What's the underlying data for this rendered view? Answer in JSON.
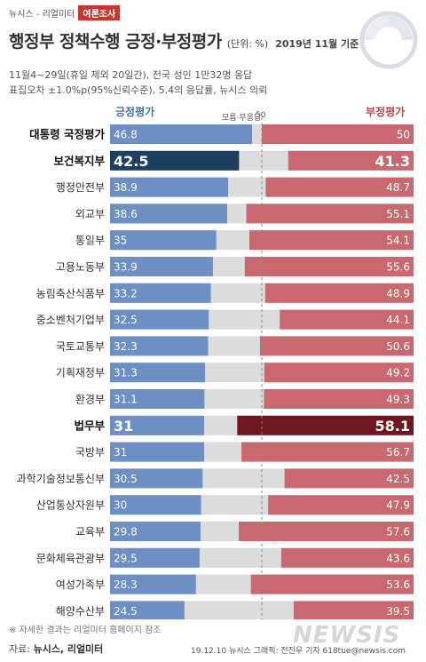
{
  "header": {
    "brand": "뉴시스 - 리얼미터",
    "tag": "여론조사"
  },
  "title": {
    "main": "행정부 정책수행 긍정·부정평가",
    "unit": "(단위: %)",
    "basis": "2019년 11월 기준"
  },
  "notes": {
    "line1": "11월4~29일(휴일 제외 20일간), 전국 성인 1만32명 응답",
    "line2": "표집오차 ±1.0%p(95%신뢰수준), 5.4의 응답률, 뉴시스 의뢰"
  },
  "legend": {
    "positive": "긍정평가",
    "middle": "모름·무응답",
    "midpoint": "50",
    "negative": "부정평가"
  },
  "colors": {
    "positive": "#6d8fc4",
    "positive_highlight": "#1d3f60",
    "negative": "#c9686e",
    "negative_highlight": "#6e1720",
    "unknown": "#dcdcdc"
  },
  "chart_data": {
    "type": "bar",
    "title": "행정부 정책수행 긍정·부정평가",
    "unit": "%",
    "layout": "diverging-stacked-100",
    "categories": [
      "대통령 국정평가",
      "보건복지부",
      "행정안전부",
      "외교부",
      "통일부",
      "고용노동부",
      "농림축산식품부",
      "중소벤처기업부",
      "국토교통부",
      "기획재정부",
      "환경부",
      "법무부",
      "국방부",
      "과학기술정보통신부",
      "산업통상자원부",
      "교육부",
      "문화체육관광부",
      "여성가족부",
      "해양수산부"
    ],
    "series": [
      {
        "name": "긍정평가",
        "values": [
          46.8,
          42.5,
          38.9,
          38.6,
          35,
          33.9,
          33.2,
          32.5,
          32.3,
          31.3,
          31.1,
          31,
          31,
          30.5,
          30,
          29.8,
          29.5,
          28.3,
          24.5
        ]
      },
      {
        "name": "부정평가",
        "values": [
          50,
          41.3,
          48.7,
          55.1,
          54.1,
          55.6,
          48.9,
          44.1,
          50.6,
          49.2,
          49.3,
          58.1,
          56.7,
          42.5,
          47.9,
          57.6,
          43.6,
          53.6,
          39.5
        ]
      }
    ],
    "highlighted": [
      "보건복지부",
      "법무부"
    ],
    "reference_line": 50
  },
  "footer": {
    "footnote": "※ 자세한 결과는 리얼미터 홈페이지 참조",
    "source_label": "자료: ",
    "source": "뉴시스, 리얼미터",
    "credit": "19.12.10  뉴시스 그래픽: 전진우 기자 618tue@newsis.com",
    "watermark": "NEWSIS"
  }
}
